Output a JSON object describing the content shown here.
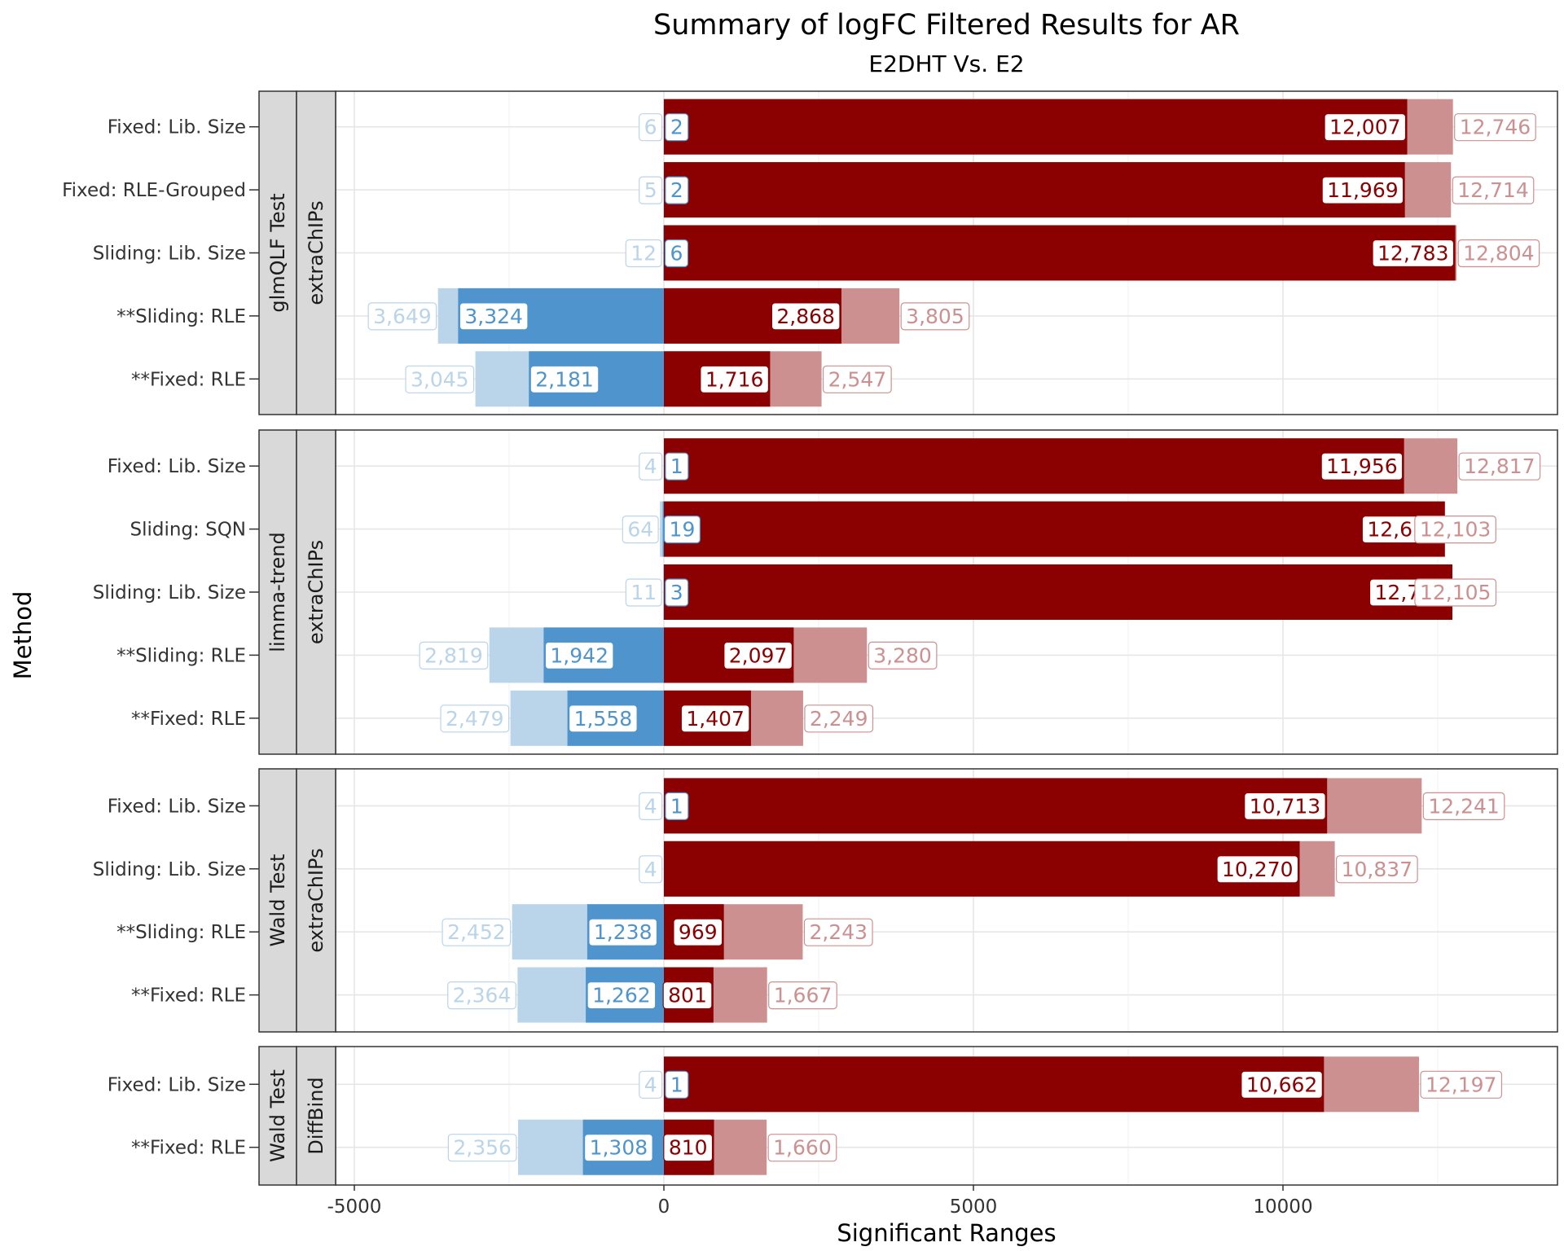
{
  "chart_data": {
    "type": "bar",
    "orientation": "horizontal",
    "title": "Summary of logFC Filtered Results for AR",
    "subtitle": "E2DHT Vs. E2",
    "xlabel": "Significant Ranges",
    "ylabel": "Method",
    "xlim": [
      -6500,
      14200
    ],
    "x_ticks": [
      -5000,
      0,
      5000,
      10000
    ],
    "x_tick_labels": [
      "-5000",
      "0",
      "5000",
      "10000"
    ],
    "grid": true,
    "colors": {
      "up_filtered": "#8b0000",
      "up_total": "#cd9090",
      "down_filtered": "#4f94cd",
      "down_total": "#bad4ea",
      "highlight_label": "#ff0000",
      "normal_label": "#333333"
    },
    "panels": [
      {
        "test": "glmQLF Test",
        "package": "extraChIPs",
        "rows": [
          {
            "label": "Fixed: Lib. Size",
            "highlight": false,
            "up_filtered": 12007,
            "up_total": 12746,
            "down_filtered": 2,
            "down_total": 6,
            "up_filtered_label": "12,007",
            "up_total_label": "12,746",
            "down_filtered_label": "2",
            "down_total_label": "6"
          },
          {
            "label": "Fixed: RLE-Grouped",
            "highlight": false,
            "up_filtered": 11969,
            "up_total": 12714,
            "down_filtered": 2,
            "down_total": 5,
            "up_filtered_label": "11,969",
            "up_total_label": "12,714",
            "down_filtered_label": "2",
            "down_total_label": "5"
          },
          {
            "label": "Sliding: Lib. Size",
            "highlight": false,
            "up_filtered": 12783,
            "up_total": 12804,
            "down_filtered": 6,
            "down_total": 12,
            "up_filtered_label": "12,783",
            "up_total_label": "12,804",
            "down_filtered_label": "6",
            "down_total_label": "12"
          },
          {
            "label": "**Sliding: RLE",
            "highlight": true,
            "up_filtered": 2868,
            "up_total": 3805,
            "down_filtered": 3324,
            "down_total": 3649,
            "up_filtered_label": "2,868",
            "up_total_label": "3,805",
            "down_filtered_label": "3,324",
            "down_total_label": "3,649"
          },
          {
            "label": "**Fixed: RLE",
            "highlight": true,
            "up_filtered": 1716,
            "up_total": 2547,
            "down_filtered": 2181,
            "down_total": 3045,
            "up_filtered_label": "1,716",
            "up_total_label": "2,547",
            "down_filtered_label": "2,181",
            "down_total_label": "3,045"
          }
        ]
      },
      {
        "test": "limma-trend",
        "package": "extraChIPs",
        "rows": [
          {
            "label": "Fixed: Lib. Size",
            "highlight": false,
            "up_filtered": 11956,
            "up_total": 12817,
            "down_filtered": 1,
            "down_total": 4,
            "up_filtered_label": "11,956",
            "up_total_label": "12,817",
            "down_filtered_label": "1",
            "down_total_label": "4"
          },
          {
            "label": "Sliding: SQN",
            "highlight": false,
            "up_filtered": 12616,
            "up_total": 12103,
            "down_filtered": 19,
            "down_total": 64,
            "up_filtered_label": "12,616",
            "up_total_label": "12,103",
            "down_filtered_label": "19",
            "down_total_label": "64"
          },
          {
            "label": "Sliding: Lib. Size",
            "highlight": false,
            "up_filtered": 12737,
            "up_total": 12105,
            "down_filtered": 3,
            "down_total": 11,
            "up_filtered_label": "12,737",
            "up_total_label": "12,105",
            "down_filtered_label": "3",
            "down_total_label": "11"
          },
          {
            "label": "**Sliding: RLE",
            "highlight": true,
            "up_filtered": 2097,
            "up_total": 3280,
            "down_filtered": 1942,
            "down_total": 2819,
            "up_filtered_label": "2,097",
            "up_total_label": "3,280",
            "down_filtered_label": "1,942",
            "down_total_label": "2,819"
          },
          {
            "label": "**Fixed: RLE",
            "highlight": true,
            "up_filtered": 1407,
            "up_total": 2249,
            "down_filtered": 1558,
            "down_total": 2479,
            "up_filtered_label": "1,407",
            "up_total_label": "2,249",
            "down_filtered_label": "1,558",
            "down_total_label": "2,479"
          }
        ]
      },
      {
        "test": "Wald Test",
        "package": "extraChIPs",
        "rows": [
          {
            "label": "Fixed: Lib. Size",
            "highlight": false,
            "up_filtered": 10713,
            "up_total": 12241,
            "down_filtered": 1,
            "down_total": 4,
            "up_filtered_label": "10,713",
            "up_total_label": "12,241",
            "down_filtered_label": "1",
            "down_total_label": "4"
          },
          {
            "label": "Sliding: Lib. Size",
            "highlight": false,
            "up_filtered": 10270,
            "up_total": 10837,
            "down_filtered": 0,
            "down_total": 4,
            "up_filtered_label": "10,270",
            "up_total_label": "10,837",
            "down_filtered_label": "",
            "down_total_label": "4"
          },
          {
            "label": "**Sliding: RLE",
            "highlight": true,
            "up_filtered": 969,
            "up_total": 2243,
            "down_filtered": 1238,
            "down_total": 2452,
            "up_filtered_label": "969",
            "up_total_label": "2,243",
            "down_filtered_label": "1,238",
            "down_total_label": "2,452"
          },
          {
            "label": "**Fixed: RLE",
            "highlight": true,
            "up_filtered": 801,
            "up_total": 1667,
            "down_filtered": 1262,
            "down_total": 2364,
            "up_filtered_label": "801",
            "up_total_label": "1,667",
            "down_filtered_label": "1,262",
            "down_total_label": "2,364"
          }
        ]
      },
      {
        "test": "Wald Test",
        "package": "DiffBind",
        "rows": [
          {
            "label": "Fixed: Lib. Size",
            "highlight": false,
            "up_filtered": 10662,
            "up_total": 12197,
            "down_filtered": 1,
            "down_total": 4,
            "up_filtered_label": "10,662",
            "up_total_label": "12,197",
            "down_filtered_label": "1",
            "down_total_label": "4"
          },
          {
            "label": "**Fixed: RLE",
            "highlight": true,
            "up_filtered": 810,
            "up_total": 1660,
            "down_filtered": 1308,
            "down_total": 2356,
            "up_filtered_label": "810",
            "up_total_label": "1,660",
            "down_filtered_label": "1,308",
            "down_total_label": "2,356"
          }
        ]
      }
    ]
  }
}
